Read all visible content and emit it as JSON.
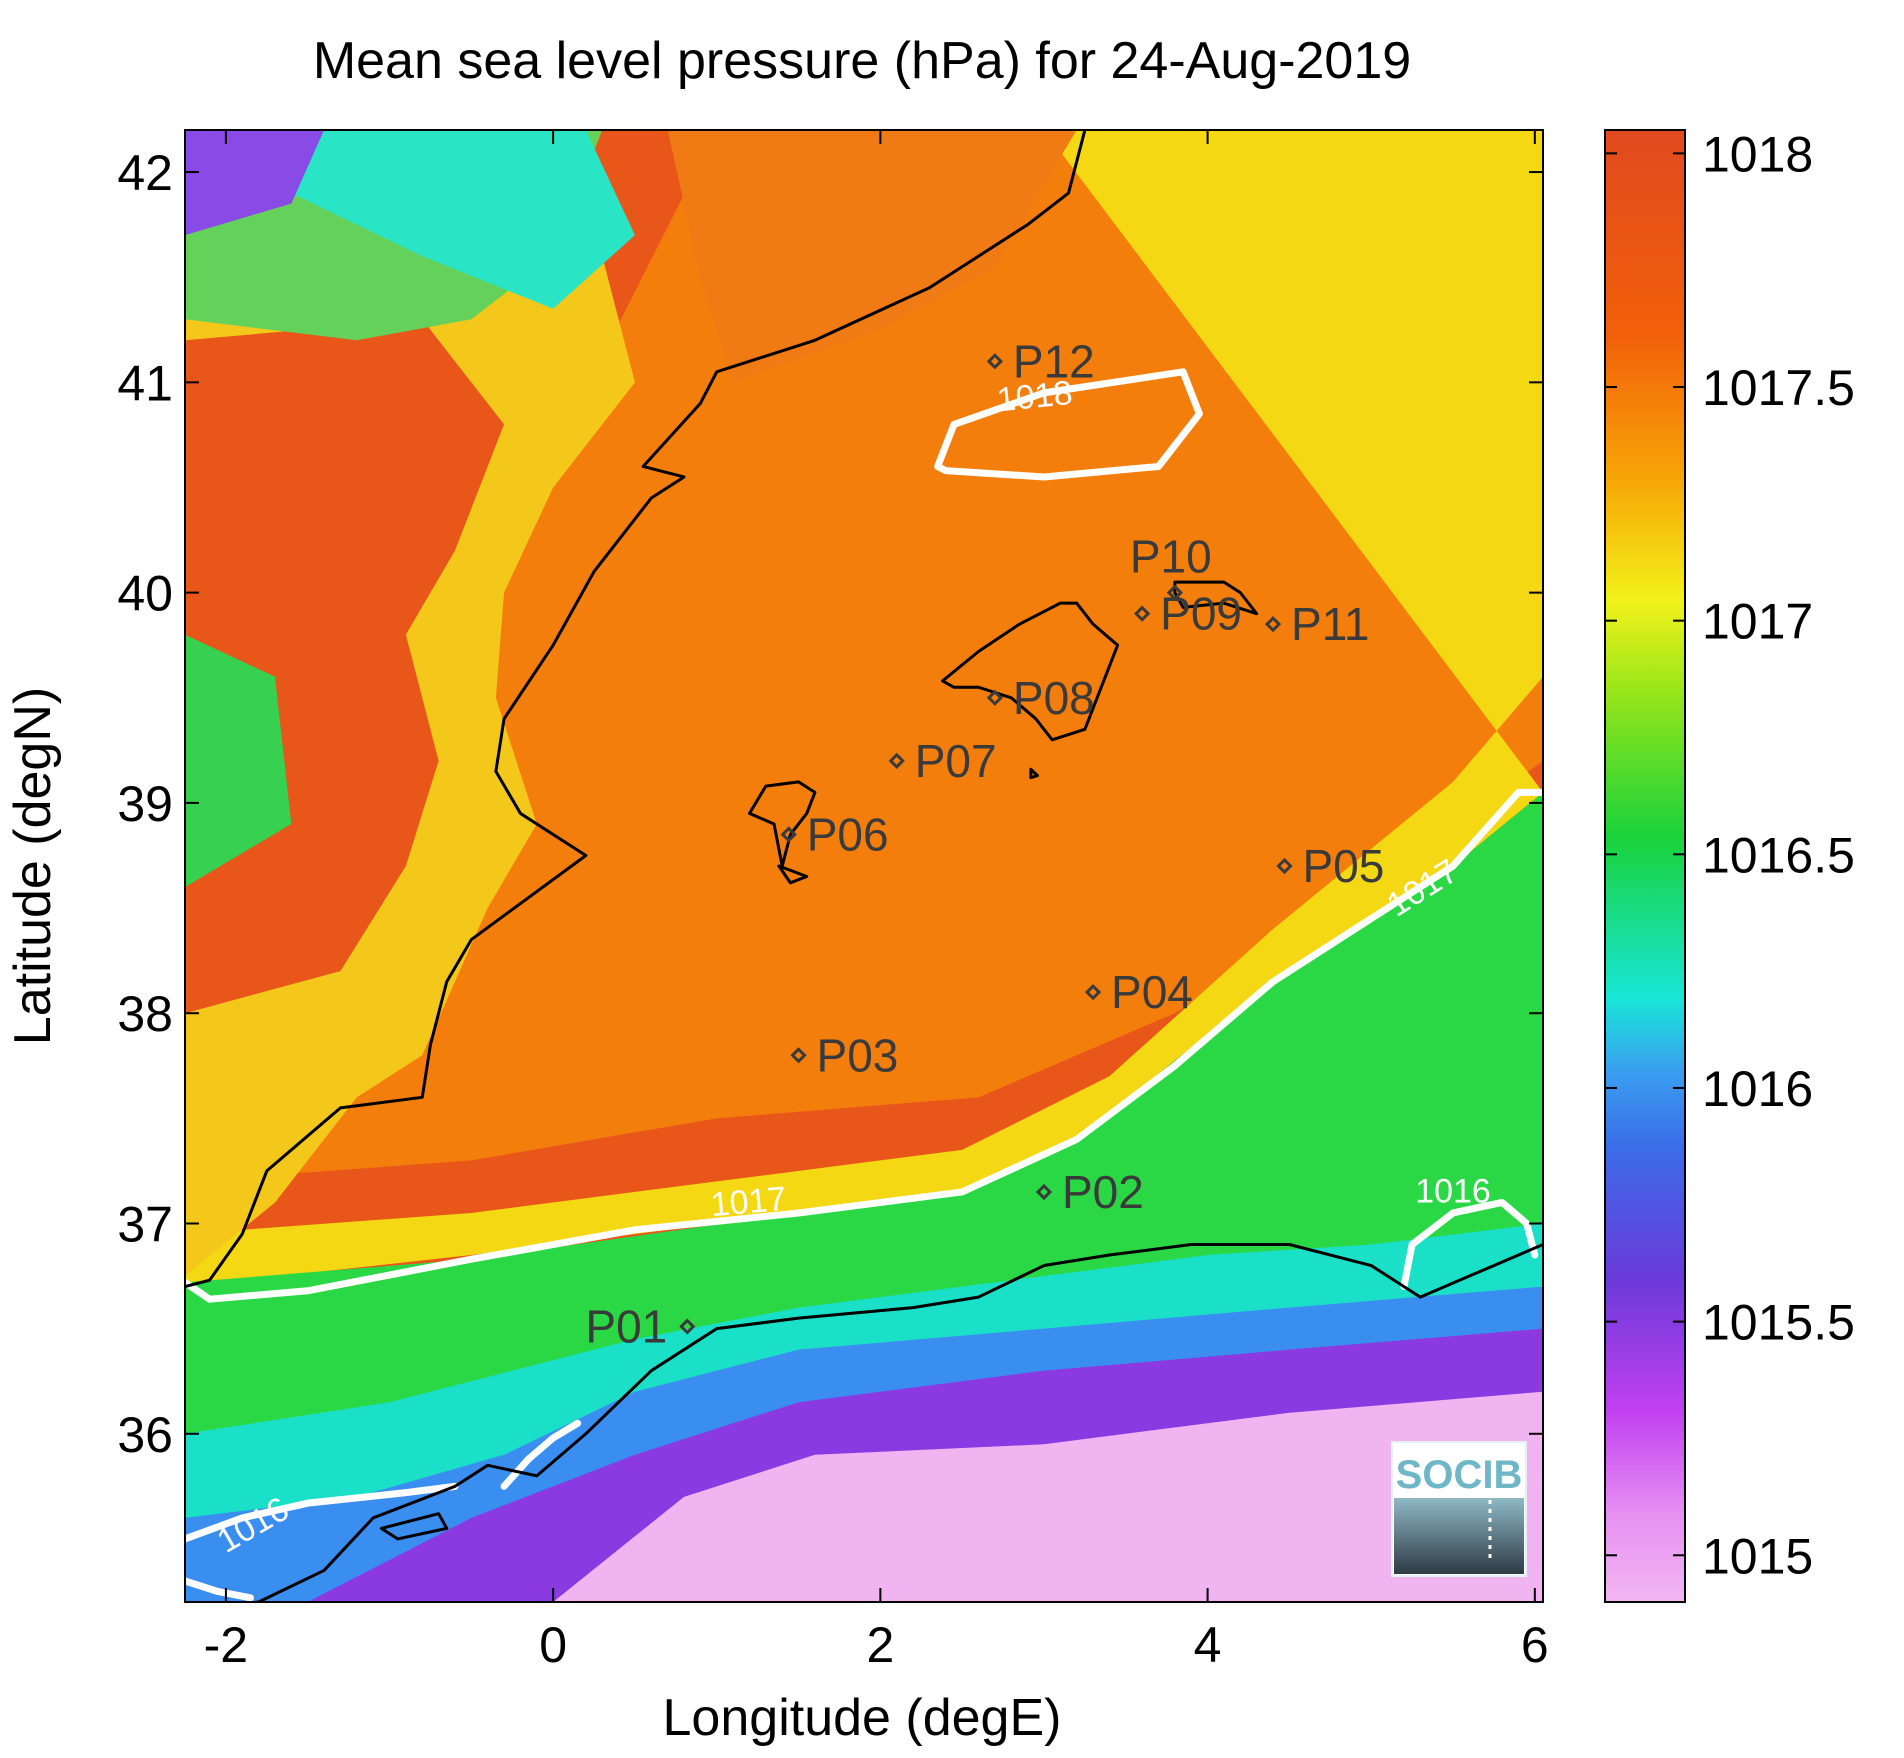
{
  "title": "Mean sea level pressure (hPa) for 24-Aug-2019",
  "xlabel": "Longitude (degE)",
  "ylabel": "Latitude (degN)",
  "logo_text": "SOCIB",
  "chart_data": {
    "type": "heatmap",
    "title": "Mean sea level pressure (hPa) for 24-Aug-2019",
    "xlabel": "Longitude (degE)",
    "ylabel": "Latitude (degN)",
    "xlim": [
      -2.25,
      6.05
    ],
    "ylim": [
      35.2,
      42.2
    ],
    "xticks": [
      -2,
      0,
      2,
      4,
      6
    ],
    "yticks": [
      36,
      37,
      38,
      39,
      40,
      41,
      42
    ],
    "colorbar": {
      "range": [
        1014.9,
        1018.05
      ],
      "ticks": [
        1015,
        1015.5,
        1016,
        1016.5,
        1017,
        1017.5,
        1018
      ],
      "colormap": [
        "#f2b6f2",
        "#c040f0",
        "#6a3ad8",
        "#3a8ef0",
        "#18e6d8",
        "#1ad23a",
        "#9ae61a",
        "#f2f21a",
        "#f7a806",
        "#f2600a",
        "#e04a1e"
      ]
    },
    "stations": [
      {
        "name": "P01",
        "lon": 0.82,
        "lat": 36.51
      },
      {
        "name": "P02",
        "lon": 3.0,
        "lat": 37.15
      },
      {
        "name": "P03",
        "lon": 1.5,
        "lat": 37.8
      },
      {
        "name": "P04",
        "lon": 3.3,
        "lat": 38.1
      },
      {
        "name": "P05",
        "lon": 4.47,
        "lat": 38.7
      },
      {
        "name": "P06",
        "lon": 1.44,
        "lat": 38.85
      },
      {
        "name": "P07",
        "lon": 2.1,
        "lat": 39.2
      },
      {
        "name": "P08",
        "lon": 2.7,
        "lat": 39.5
      },
      {
        "name": "P09",
        "lon": 3.6,
        "lat": 39.9
      },
      {
        "name": "P10",
        "lon": 3.8,
        "lat": 40.0
      },
      {
        "name": "P11",
        "lon": 4.4,
        "lat": 39.85
      },
      {
        "name": "P12",
        "lon": 2.7,
        "lat": 41.1
      }
    ],
    "contours": [
      {
        "level": "1018",
        "points": [
          [
            2.35,
            40.6
          ],
          [
            2.45,
            40.8
          ],
          [
            3.0,
            40.95
          ],
          [
            3.85,
            41.05
          ],
          [
            3.95,
            40.85
          ],
          [
            3.7,
            40.6
          ],
          [
            3.0,
            40.55
          ],
          [
            2.4,
            40.58
          ]
        ]
      },
      {
        "level": "1017",
        "points": [
          [
            -2.25,
            36.72
          ],
          [
            -2.1,
            36.64
          ],
          [
            -1.5,
            36.68
          ],
          [
            -0.5,
            36.83
          ],
          [
            0.5,
            36.97
          ],
          [
            1.5,
            37.05
          ],
          [
            2.5,
            37.15
          ],
          [
            3.2,
            37.4
          ],
          [
            3.8,
            37.75
          ],
          [
            4.4,
            38.15
          ],
          [
            5.0,
            38.45
          ],
          [
            5.5,
            38.7
          ],
          [
            5.9,
            39.05
          ],
          [
            6.05,
            39.05
          ]
        ]
      },
      {
        "level": "1016",
        "points": [
          [
            5.2,
            36.7
          ],
          [
            5.25,
            36.9
          ],
          [
            5.5,
            37.05
          ],
          [
            5.8,
            37.1
          ],
          [
            5.95,
            37.0
          ],
          [
            6.0,
            36.85
          ]
        ]
      },
      {
        "level": "1016",
        "points": [
          [
            -2.25,
            35.5
          ],
          [
            -1.9,
            35.6
          ],
          [
            -1.5,
            35.67
          ],
          [
            -0.9,
            35.72
          ],
          [
            -0.6,
            35.75
          ]
        ]
      },
      {
        "level": "1016",
        "points": [
          [
            -0.3,
            35.75
          ],
          [
            -0.15,
            35.88
          ],
          [
            0.0,
            35.98
          ],
          [
            0.15,
            36.05
          ]
        ]
      },
      {
        "level": "1016",
        "points": [
          [
            -2.25,
            35.3
          ],
          [
            -2.05,
            35.25
          ],
          [
            -1.85,
            35.22
          ]
        ]
      }
    ],
    "contour_labels": [
      {
        "text": "1018",
        "lon": 2.95,
        "lat": 40.88,
        "angle": -6
      },
      {
        "text": "1017",
        "lon": 1.2,
        "lat": 37.05,
        "angle": -5
      },
      {
        "text": "1017",
        "lon": 5.35,
        "lat": 38.55,
        "angle": -32
      },
      {
        "text": "1016",
        "lon": 5.5,
        "lat": 37.1,
        "angle": 0
      },
      {
        "text": "1016",
        "lon": -1.8,
        "lat": 35.52,
        "angle": -30
      }
    ]
  }
}
